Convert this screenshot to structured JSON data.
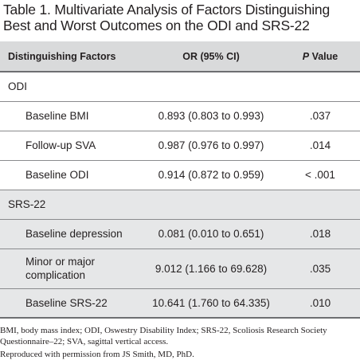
{
  "title": {
    "label": "Table 1.",
    "text": "Multivariate Analysis of Factors Distinguishing Best and Worst Outcomes on the ODI and SRS-22"
  },
  "table": {
    "headers": {
      "factor": "Distinguishing Factors",
      "or": "OR (95% CI)",
      "p_italic": "P",
      "p_rest": " Value"
    },
    "groups": [
      {
        "name": "ODI",
        "rows": [
          {
            "factor": "Baseline BMI",
            "or": "0.893 (0.803 to 0.993)",
            "p": ".037"
          },
          {
            "factor": "Follow-up SVA",
            "or": "0.987 (0.976 to 0.997)",
            "p": ".014"
          },
          {
            "factor": "Baseline ODI",
            "or": "0.914 (0.872 to 0.959)",
            "p": "< .001"
          }
        ]
      },
      {
        "name": "SRS-22",
        "rows": [
          {
            "factor": "Baseline depression",
            "or": "0.081 (0.010 to 0.651)",
            "p": ".018"
          },
          {
            "factor": "Minor or major complication",
            "or": "9.012 (1.166 to 69.628)",
            "p": ".035"
          },
          {
            "factor": "Baseline SRS-22",
            "or": "10.641 (1.760 to 64.335)",
            "p": ".010"
          }
        ]
      }
    ]
  },
  "footnotes": {
    "abbreviations": "BMI, body mass index; ODI, Oswestry Disability Index; SRS-22, Scoliosis Research Society Questionnaire–22; SVA, sagittal vertical access.",
    "permission": "Reproduced with permission from JS Smith, MD, PhD."
  }
}
